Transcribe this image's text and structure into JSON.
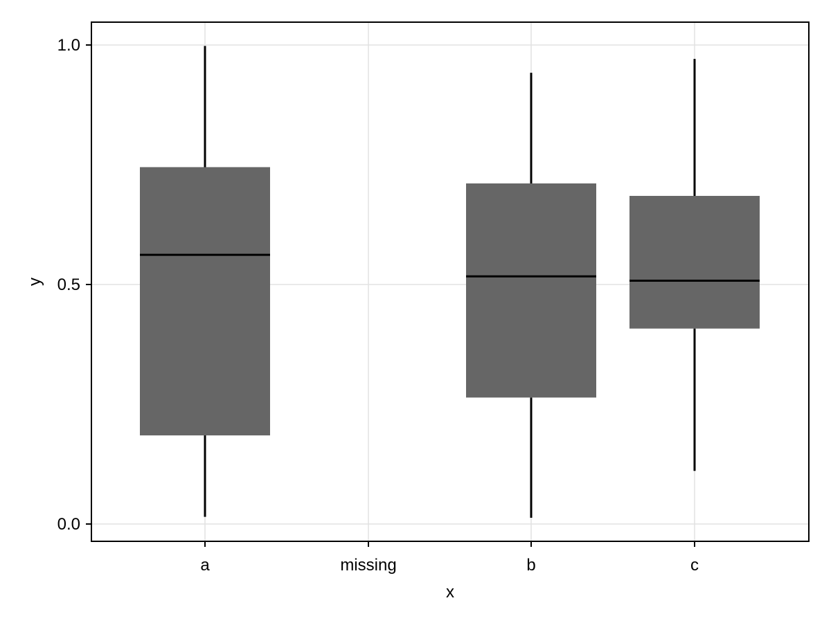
{
  "chart_data": {
    "type": "box",
    "title": "",
    "xlabel": "x",
    "ylabel": "y",
    "categories": [
      "a",
      "missing",
      "b",
      "c"
    ],
    "ylim": [
      -0.035,
      1.05
    ],
    "yticks": [
      0.0,
      0.5,
      1.0
    ],
    "ytick_labels": [
      "0.0",
      "0.5",
      "1.0"
    ],
    "grid": true,
    "box_color": "#666666",
    "boxes": [
      {
        "category": "a",
        "min": 0.015,
        "q1": 0.185,
        "median": 0.562,
        "q3": 0.745,
        "max": 0.998
      },
      {
        "category": "b",
        "min": 0.013,
        "q1": 0.264,
        "median": 0.517,
        "q3": 0.711,
        "max": 0.942
      },
      {
        "category": "c",
        "min": 0.111,
        "q1": 0.408,
        "median": 0.508,
        "q3": 0.685,
        "max": 0.971
      }
    ]
  }
}
